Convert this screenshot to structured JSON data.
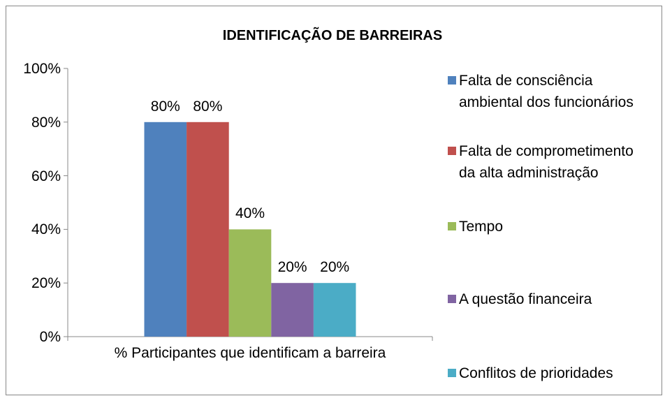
{
  "chart_data": {
    "type": "bar",
    "title": "IDENTIFICAÇÃO DE BARREIRAS",
    "categories": [
      "% Participantes que identificam a barreira"
    ],
    "series": [
      {
        "name": "Falta de consciência ambiental dos funcionários",
        "color": "#4f81bd",
        "values": [
          80
        ],
        "value_labels": [
          "80%"
        ]
      },
      {
        "name": "Falta de comprometimento da alta administração",
        "color": "#c0504d",
        "values": [
          80
        ],
        "value_labels": [
          "80%"
        ]
      },
      {
        "name": "Tempo",
        "color": "#9bbb59",
        "values": [
          40
        ],
        "value_labels": [
          "40%"
        ]
      },
      {
        "name": "A questão financeira",
        "color": "#8064a2",
        "values": [
          20
        ],
        "value_labels": [
          "20%"
        ]
      },
      {
        "name": "Conflitos de prioridades",
        "color": "#4bacc6",
        "values": [
          20
        ],
        "value_labels": [
          "20%"
        ]
      }
    ],
    "ylim": [
      0,
      100
    ],
    "yticks": [
      {
        "value": 0,
        "label": "0%"
      },
      {
        "value": 20,
        "label": "20%"
      },
      {
        "value": 40,
        "label": "40%"
      },
      {
        "value": 60,
        "label": "60%"
      },
      {
        "value": 80,
        "label": "80%"
      },
      {
        "value": 100,
        "label": "100%"
      }
    ],
    "grid": false,
    "legend": "right"
  }
}
